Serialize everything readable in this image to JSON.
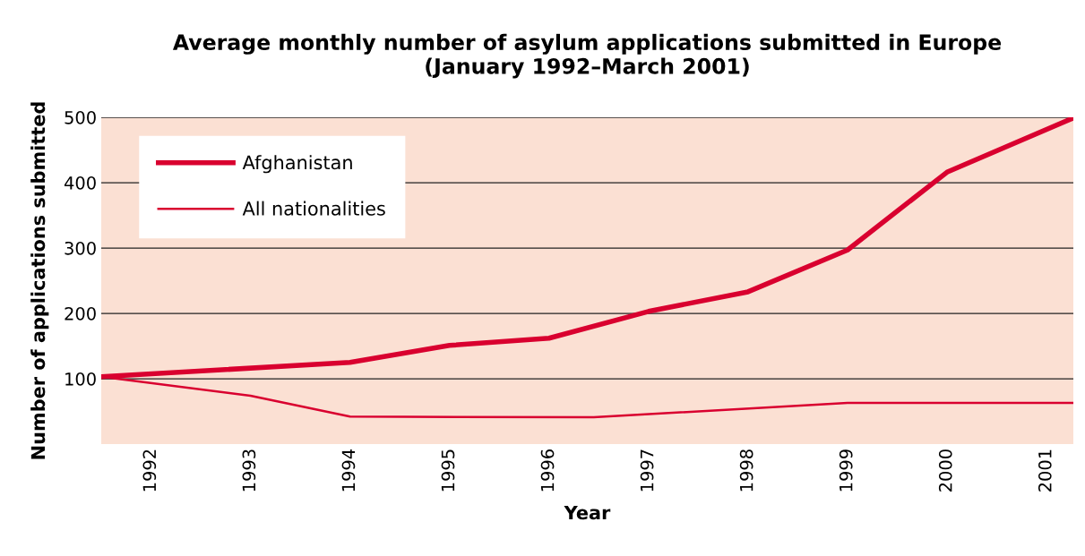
{
  "chart_data": {
    "type": "line",
    "title": "Average monthly number of asylum applications submitted in Europe\n(January 1992–March 2001)",
    "xlabel": "Year",
    "ylabel": "Number of applications submitted",
    "xlim": [
      1991.5,
      2001.27
    ],
    "xticks": [
      1992,
      1993,
      1994,
      1995,
      1996,
      1997,
      1998,
      1999,
      2000,
      2001
    ],
    "ylim": [
      0,
      500
    ],
    "yticks": [
      100,
      200,
      300,
      400,
      500
    ],
    "grid": "y",
    "legend": "top left",
    "line_style": "solid",
    "marker": "none",
    "series": [
      {
        "name": "Afghanistan",
        "color": "#d9002f",
        "x": [
          1991.5,
          1994,
          1995,
          1996,
          1997,
          1998,
          1999,
          2000,
          2001.27
        ],
        "values": [
          103,
          125,
          151,
          162,
          203,
          233,
          297,
          416,
          499
        ]
      },
      {
        "name": "All nationalities",
        "color": "#d9002f",
        "x": [
          1991.5,
          1993,
          1994,
          1996.45,
          1999,
          2001.27
        ],
        "values": [
          103,
          74,
          42,
          41,
          63,
          63
        ]
      }
    ]
  }
}
